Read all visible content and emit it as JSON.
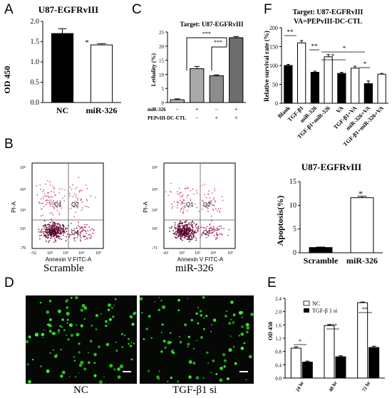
{
  "panel_letters": {
    "A": "A",
    "B": "B",
    "C": "C",
    "D": "D",
    "E": "E",
    "F": "F"
  },
  "panelA": {
    "title": "U87-EGFRvIII",
    "ylabel": "OD 450",
    "sig": "*"
  },
  "panelC": {
    "title": "Target:  U87-EGFRvIII",
    "ylabel": "Lethality (%)",
    "row1_label": "miR-326",
    "row2_label": "PEPvIII-DC-CTL",
    "row1_marks": [
      "−",
      "+",
      "−",
      "+"
    ],
    "row2_marks": [
      "−",
      "−",
      "+",
      "+"
    ],
    "sig": [
      "***",
      "***"
    ]
  },
  "panelF": {
    "title1": "Target:  U87-EGFRvIII",
    "title2": "VA=PEPvIII-DC-CTL",
    "ylabel": "Relative survival rate (%)",
    "sig": [
      "**",
      "**",
      "*",
      "*",
      "*"
    ]
  },
  "panelB": {
    "left_caption": "Scramble",
    "right_caption": "miR-326",
    "xaxis": "Annexin V FITC-A",
    "yaxis": "PI-A",
    "quadrants": [
      "Q1",
      "Q2",
      "Q3",
      "Q4"
    ],
    "left_yticks": [
      "10⁵",
      "10⁴",
      "10³",
      "10²",
      "-79"
    ],
    "left_xticks": [
      "-52",
      "10²",
      "10³",
      "10⁴",
      "10⁵"
    ],
    "right_yticks": [
      "10⁵",
      "10⁴",
      "10³",
      "10²",
      "-71"
    ],
    "right_xticks": [
      "-43",
      "10²",
      "10³",
      "10⁴",
      "10⁵"
    ]
  },
  "panelBbar": {
    "title": "U87-EGFRvIII",
    "ylabel": "Apoptosis(%)",
    "sig": "*"
  },
  "panelD": {
    "left_caption": "NC",
    "right_caption": "TGF-β1 si"
  },
  "panelE": {
    "ylabel": "OD 450",
    "legend": [
      "NC",
      "TGF-β 1 si"
    ],
    "sig": [
      "*",
      "***",
      "**"
    ]
  },
  "chart_data": [
    {
      "panel": "A",
      "type": "bar",
      "title": "U87-EGFRvIII",
      "ylabel": "OD 450",
      "categories": [
        "NC",
        "miR-326"
      ],
      "values": [
        1.7,
        1.42
      ],
      "errors": [
        0.12,
        0.03
      ],
      "ylim": [
        0,
        2.0
      ],
      "yticks": [
        0,
        0.5,
        1.0,
        1.5,
        2.0
      ],
      "colors": [
        "#000000",
        "#ffffff"
      ]
    },
    {
      "panel": "C",
      "type": "bar",
      "title": "Target:  U87-EGFRvIII",
      "ylabel": "Lethality (%)",
      "categories": [
        "1",
        "2",
        "3",
        "4"
      ],
      "values": [
        1.0,
        12.0,
        9.5,
        23.0
      ],
      "errors": [
        0.3,
        0.8,
        0.3,
        0.4
      ],
      "ylim": [
        0,
        25
      ],
      "yticks": [
        0,
        5,
        10,
        15,
        20,
        25
      ],
      "colors": [
        "#bdbdbd",
        "#a9a9a9",
        "#8c8c8c",
        "#6d6d6d"
      ]
    },
    {
      "panel": "F",
      "type": "bar",
      "ylabel": "Relative survival rate (%)",
      "categories": [
        "Blank",
        "TGF-β1",
        "miR-326",
        "TGF-β1+miR-326",
        "VA",
        "TGF-β1+VA",
        "miR-326+VA",
        "TGF-β1+miR-326+VA"
      ],
      "values": [
        100,
        160,
        82,
        123,
        79,
        93,
        52,
        77
      ],
      "errors": [
        3,
        6,
        3,
        6,
        3,
        5,
        7,
        2
      ],
      "ylim": [
        0,
        200
      ],
      "yticks": [
        0,
        50,
        100,
        150,
        200
      ],
      "colors": [
        "#000000",
        "#ffffff",
        "#000000",
        "#ffffff",
        "#000000",
        "#ffffff",
        "#000000",
        "#ffffff"
      ]
    },
    {
      "panel": "B-bar",
      "type": "bar",
      "title": "U87-EGFRvIII",
      "ylabel": "Apoptosis(%)",
      "categories": [
        "Scramble",
        "miR-326"
      ],
      "values": [
        1.1,
        11.6
      ],
      "errors": [
        0.1,
        0.3
      ],
      "ylim": [
        0,
        15
      ],
      "yticks": [
        0,
        5,
        10,
        15
      ],
      "colors": [
        "#000000",
        "#ffffff"
      ]
    },
    {
      "panel": "E",
      "type": "bar",
      "ylabel": "OD 450",
      "categories": [
        "24 hr",
        "48 hr",
        "72 hr"
      ],
      "series": [
        {
          "name": "NC",
          "values": [
            0.9,
            1.58,
            2.27
          ],
          "errors": [
            0.04,
            0.03,
            0.02
          ],
          "color": "#ffffff"
        },
        {
          "name": "TGF-β 1 si",
          "values": [
            0.48,
            0.64,
            0.92
          ],
          "errors": [
            0.03,
            0.03,
            0.04
          ],
          "color": "#000000"
        }
      ],
      "ylim": [
        0,
        2.4
      ],
      "yticks": [
        0,
        0.4,
        0.8,
        1.2,
        1.6,
        2.0,
        2.4
      ]
    }
  ]
}
